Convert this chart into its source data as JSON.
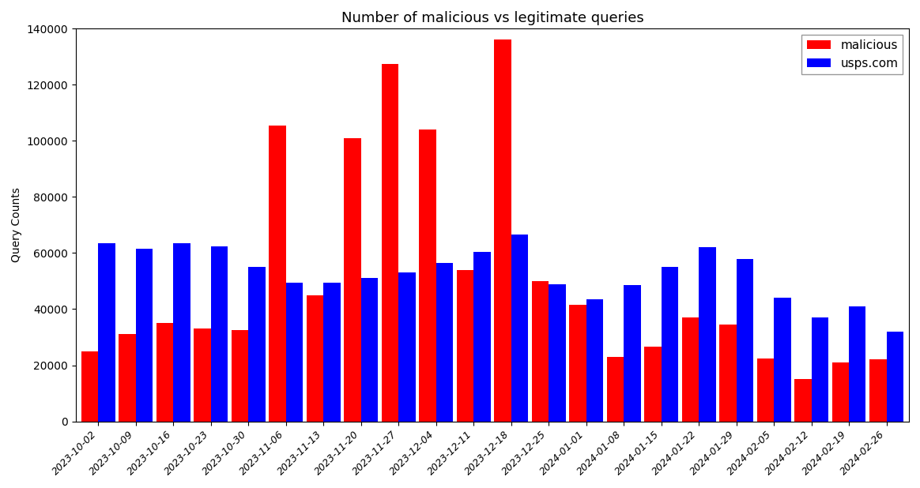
{
  "title": "Number of malicious vs legitimate queries",
  "ylabel": "Query Counts",
  "categories": [
    "2023-10-02",
    "2023-10-09",
    "2023-10-16",
    "2023-10-23",
    "2023-10-30",
    "2023-11-06",
    "2023-11-13",
    "2023-11-20",
    "2023-11-27",
    "2023-12-04",
    "2023-12-11",
    "2023-12-18",
    "2023-12-25",
    "2024-01-01",
    "2024-01-08",
    "2024-01-15",
    "2024-01-22",
    "2024-01-29",
    "2024-02-05",
    "2024-02-12",
    "2024-02-19",
    "2024-02-26"
  ],
  "malicious": [
    25000,
    31000,
    35000,
    33000,
    32500,
    105500,
    45000,
    101000,
    127500,
    104000,
    54000,
    136000,
    50000,
    41500,
    23000,
    26500,
    37000,
    34500,
    22500,
    15000,
    21000,
    22000
  ],
  "usps": [
    63500,
    61500,
    63500,
    62500,
    55000,
    49500,
    49500,
    51000,
    53000,
    56500,
    60500,
    66500,
    49000,
    43500,
    48500,
    55000,
    62000,
    58000,
    44000,
    37000,
    41000,
    32000
  ],
  "malicious_color": "#ff0000",
  "usps_color": "#0000ff",
  "ylim": [
    0,
    140000
  ],
  "yticks": [
    0,
    20000,
    40000,
    60000,
    80000,
    100000,
    120000,
    140000
  ],
  "legend_labels": [
    "malicious",
    "usps.com"
  ],
  "bar_width": 0.45,
  "title_fontsize": 13,
  "background_color": "#ffffff"
}
